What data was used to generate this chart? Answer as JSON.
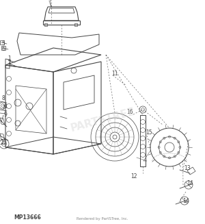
{
  "background_color": "#ffffff",
  "watermark": "PARTSTREE",
  "bottom_left_text": "MP13666",
  "bottom_center_text": "Rendered by PartSTree, Inc.",
  "line_color": "#444444",
  "fig_width": 3.0,
  "fig_height": 3.27,
  "dpi": 100
}
